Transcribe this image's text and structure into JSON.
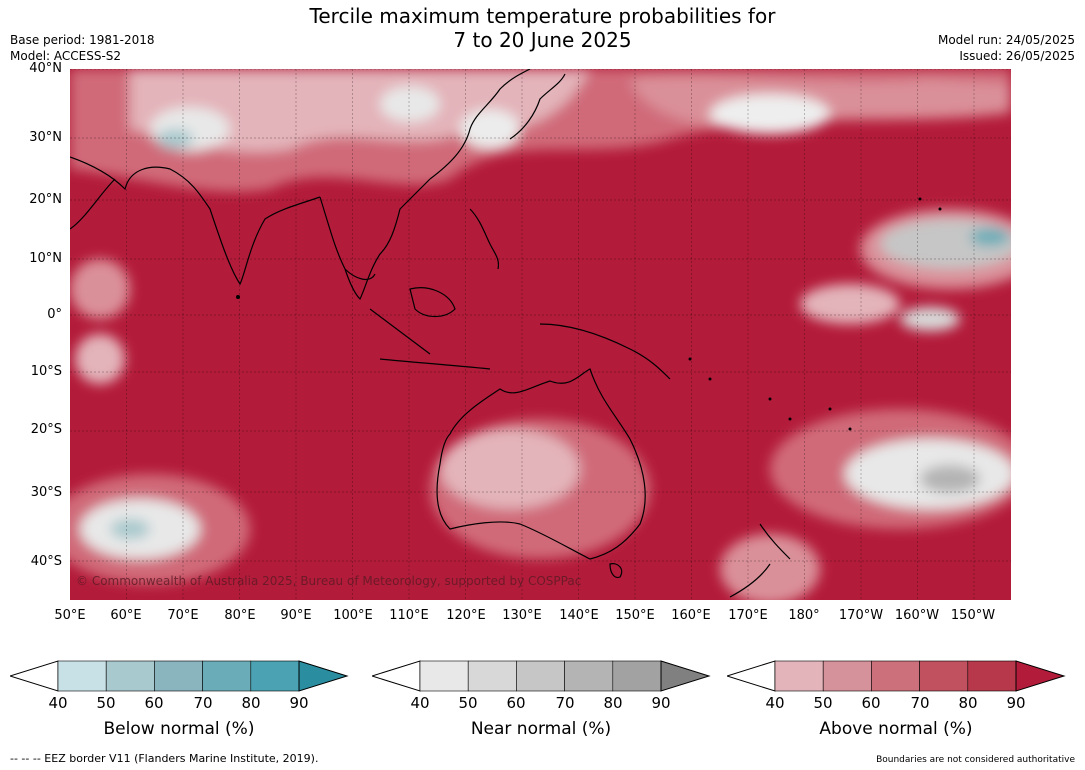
{
  "header": {
    "title_line1": "Tercile maximum temperature probabilities for",
    "title_line2": "7 to 20 June 2025",
    "base_period": "Base period: 1981-2018",
    "model": "Model: ACCESS-S2",
    "model_run": "Model run: 24/05/2025",
    "issued": "Issued: 26/05/2025"
  },
  "map": {
    "lat_labels": [
      "40°N",
      "30°N",
      "20°N",
      "10°N",
      "0°",
      "10°S",
      "20°S",
      "30°S",
      "40°S"
    ],
    "lon_labels": [
      "50°E",
      "60°E",
      "70°E",
      "80°E",
      "90°E",
      "100°E",
      "110°E",
      "120°E",
      "130°E",
      "140°E",
      "150°E",
      "160°E",
      "170°E",
      "180°",
      "170°W",
      "160°W",
      "150°W"
    ],
    "copyright": "© Commonwealth of Australia 2025, Bureau of Meteorology, supported by COSPPac",
    "colors": {
      "ocean_above_90": "#b31b3a",
      "above_80": "#c44458",
      "above_70": "#d06b79",
      "above_60": "#da9099",
      "above_50": "#e3b4ba",
      "near": "#a5a5a5",
      "below": "#4aa2b3"
    }
  },
  "legends": [
    {
      "name": "below",
      "title": "Below normal (%)",
      "ticks": [
        "40",
        "50",
        "60",
        "70",
        "80",
        "90"
      ],
      "colors": [
        "#c8e1e7",
        "#a8c9cd",
        "#8ab5be",
        "#6aadb8",
        "#4aa2b3",
        "#2a8da0"
      ]
    },
    {
      "name": "near",
      "title": "Near normal (%)",
      "ticks": [
        "40",
        "50",
        "60",
        "70",
        "80",
        "90"
      ],
      "colors": [
        "#e8e8e8",
        "#d8d8d8",
        "#c6c6c6",
        "#b4b4b4",
        "#a2a2a2",
        "#808080"
      ]
    },
    {
      "name": "above",
      "title": "Above normal (%)",
      "ticks": [
        "40",
        "50",
        "60",
        "70",
        "80",
        "90"
      ],
      "colors": [
        "#e3b4ba",
        "#d6929a",
        "#cc707c",
        "#c1515f",
        "#b7384a",
        "#b31b3a"
      ]
    }
  ],
  "footer": {
    "eez_note": "-- -- -- EEZ border V11 (Flanders Marine Institute, 2019).",
    "boundaries_note": "Boundaries are not considered authoritative"
  }
}
